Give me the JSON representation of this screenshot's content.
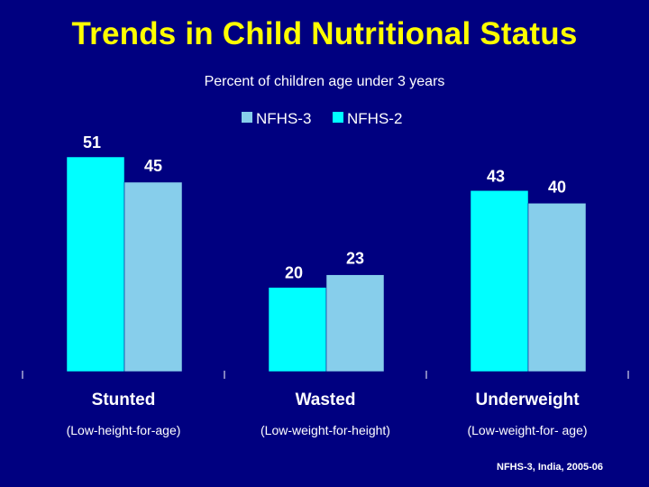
{
  "slide": {
    "title": "Trends in Child Nutritional Status",
    "subtitle": "Percent of children age under 3 years",
    "source": "NFHS-3, India, 2005-06"
  },
  "colors": {
    "background": "#000080",
    "title": "#ffff00",
    "text": "#ffffff",
    "series_nfhs2": "#00ffff",
    "series_nfhs3": "#87ceeb"
  },
  "chart_data": {
    "type": "bar",
    "title": "Percent of children age under 3 years",
    "categories": [
      "Stunted",
      "Wasted",
      "Underweight"
    ],
    "category_notes": [
      "(Low-height-for-age)",
      "(Low-weight-for-height)",
      "(Low-weight-for- age)"
    ],
    "legend": [
      "NFHS-3",
      "NFHS-2"
    ],
    "legend_position": "top-center",
    "bar_order": [
      "NFHS-2",
      "NFHS-3"
    ],
    "series": [
      {
        "name": "NFHS-2",
        "values": [
          51,
          20,
          43
        ],
        "color": "#00ffff"
      },
      {
        "name": "NFHS-3",
        "values": [
          45,
          23,
          40
        ],
        "color": "#87ceeb"
      }
    ],
    "data_labels": {
      "NFHS-2": [
        "51",
        "20",
        "43"
      ],
      "NFHS-3": [
        "45",
        "23",
        "40"
      ]
    },
    "ylim": [
      0,
      54
    ],
    "xlabel": "",
    "ylabel": "",
    "grid": false
  }
}
